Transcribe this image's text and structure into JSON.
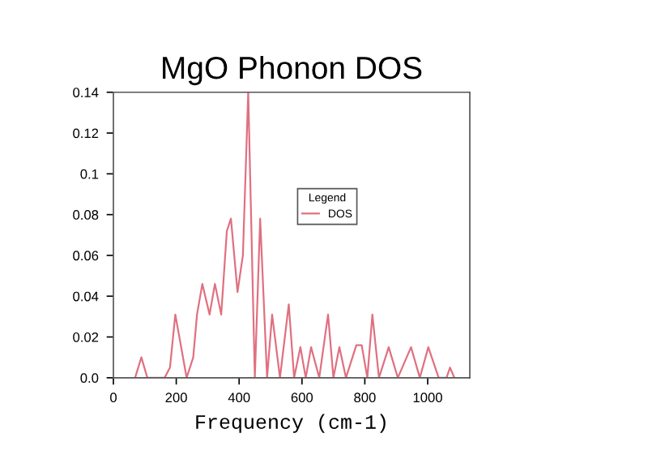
{
  "chart_data": {
    "type": "line",
    "title": "MgO Phonon DOS",
    "xlabel": "Frequency (cm-1)",
    "legend_title": "Legend",
    "legend": "center",
    "grid": false,
    "marker": "none",
    "line_style": "solid",
    "xlim": [
      0,
      1134
    ],
    "xticks": [
      0,
      200,
      400,
      600,
      800,
      1000
    ],
    "ylim": [
      0,
      0.14
    ],
    "yticks": [
      {
        "value": 0,
        "label": "0.0"
      },
      0.02,
      0.04,
      0.06,
      0.08,
      0.1,
      0.12,
      0.14
    ],
    "series": [
      {
        "name": "DOS",
        "color": "#e07080",
        "x": [
          69,
          89,
          108,
          163,
          180,
          197,
          233,
          254,
          266,
          283,
          306,
          323,
          343,
          361,
          374,
          395,
          412,
          429,
          450,
          467,
          489,
          505,
          530,
          558,
          575,
          595,
          612,
          629,
          655,
          683,
          700,
          719,
          740,
          773,
          790,
          808,
          824,
          845,
          876,
          905,
          947,
          975,
          1002,
          1035,
          1060,
          1071,
          1085
        ],
        "values": [
          0,
          0.01,
          0,
          0,
          0.005,
          0.031,
          0,
          0.01,
          0.031,
          0.046,
          0.031,
          0.046,
          0.031,
          0.072,
          0.078,
          0.042,
          0.06,
          0.14,
          0,
          0.078,
          0,
          0.031,
          0,
          0.036,
          0,
          0.015,
          0,
          0.015,
          0,
          0.031,
          0,
          0.015,
          0,
          0.016,
          0.016,
          0,
          0.031,
          0,
          0.015,
          0,
          0.015,
          0,
          0.015,
          0,
          0,
          0.005,
          0
        ]
      }
    ]
  }
}
